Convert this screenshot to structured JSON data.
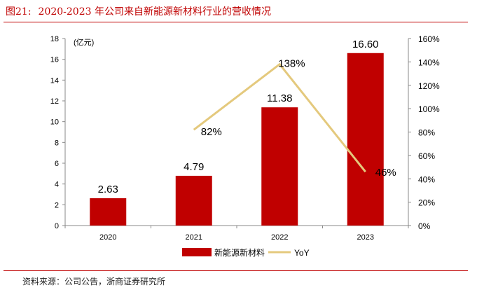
{
  "figure": {
    "number": "图21:",
    "title": "2020-2023 年公司来自新能源新材料行业的营收情况",
    "source": "资料来源：公司公告，浙商证券研究所"
  },
  "colors": {
    "bar": "#c00000",
    "line": "#e4c97d",
    "rule": "#c00000"
  },
  "chart_data": {
    "type": "bar",
    "categories": [
      "2020",
      "2021",
      "2022",
      "2023"
    ],
    "series": [
      {
        "name": "新能源新材料",
        "type": "bar",
        "axis": "left",
        "values": [
          2.63,
          4.79,
          11.38,
          16.6
        ],
        "labels": [
          "2.63",
          "4.79",
          "11.38",
          "16.60"
        ]
      },
      {
        "name": "YoY",
        "type": "line",
        "axis": "right",
        "values": [
          null,
          82,
          138,
          46
        ],
        "labels": [
          "",
          "82%",
          "138%",
          "46%"
        ]
      }
    ],
    "ylabel": "(亿元)",
    "ylim": [
      0,
      18
    ],
    "yticks": [
      "0",
      "2",
      "4",
      "6",
      "8",
      "10",
      "12",
      "14",
      "16",
      "18"
    ],
    "y2lim": [
      0,
      160
    ],
    "y2ticks": [
      "0%",
      "20%",
      "40%",
      "60%",
      "80%",
      "100%",
      "120%",
      "140%",
      "160%"
    ],
    "legend_position": "bottom",
    "grid": false
  }
}
